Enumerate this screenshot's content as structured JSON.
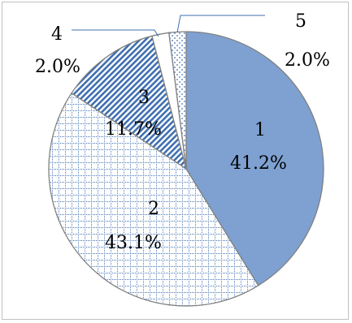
{
  "chart_data": {
    "type": "pie",
    "title": "",
    "start_angle_deg": 0,
    "direction": "clockwise",
    "slices": [
      {
        "category": "1",
        "value_label": "41.2%",
        "value": 41.2,
        "fill": "pattern-solid",
        "color": "#7ea1d1"
      },
      {
        "category": "2",
        "value_label": "43.1%",
        "value": 43.1,
        "fill": "pattern-grid",
        "color": "#3f6fb0"
      },
      {
        "category": "3",
        "value_label": "11.7%",
        "value": 11.7,
        "fill": "pattern-diagonal",
        "color": "#3f6fb0"
      },
      {
        "category": "4",
        "value_label": "2.0%",
        "value": 2.0,
        "fill": "pattern-white",
        "color": "#ffffff"
      },
      {
        "category": "5",
        "value_label": "2.0%",
        "value": 2.0,
        "fill": "pattern-dots",
        "color": "#3f6fb0"
      }
    ],
    "legend": "none",
    "outline_color": "#808080",
    "leader_line_color": "#3f6fb0"
  }
}
